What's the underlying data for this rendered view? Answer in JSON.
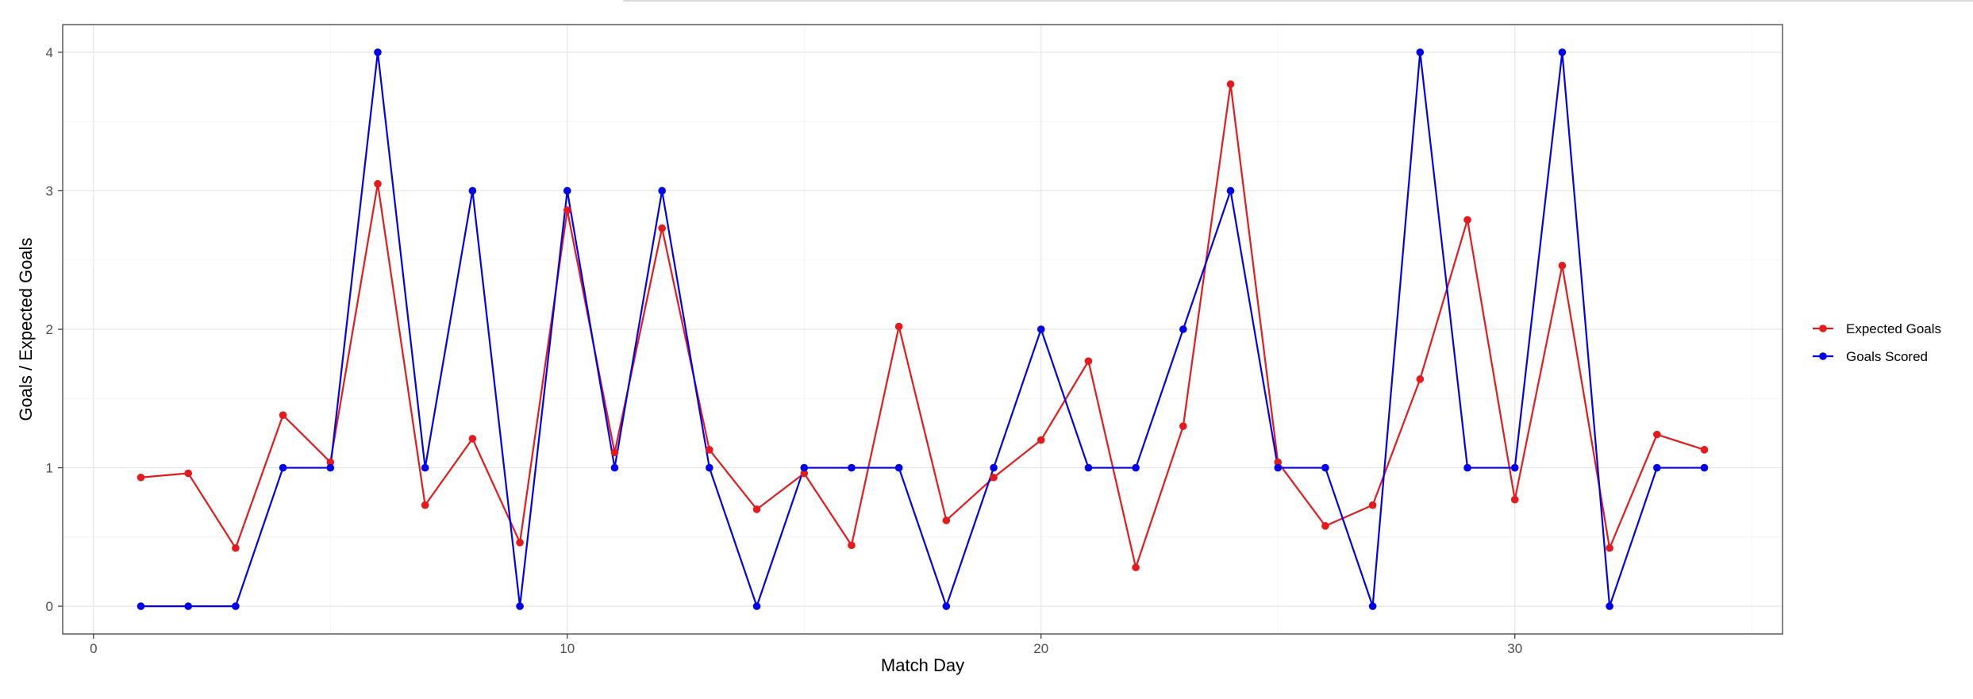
{
  "chart_data": {
    "type": "line",
    "title": "",
    "xlabel": "Match Day",
    "ylabel": "Goals / Expected Goals",
    "x": [
      1,
      2,
      3,
      4,
      5,
      6,
      7,
      8,
      9,
      10,
      11,
      12,
      13,
      14,
      15,
      16,
      17,
      18,
      19,
      20,
      21,
      22,
      23,
      24,
      25,
      26,
      27,
      28,
      29,
      30,
      31,
      32,
      33,
      34
    ],
    "xlim": [
      -0.65,
      35.65
    ],
    "ylim": [
      -0.2,
      4.2
    ],
    "x_ticks": [
      0,
      10,
      20,
      30
    ],
    "x_ticks_labels": [
      "0",
      "10",
      "20",
      "30"
    ],
    "y_ticks": [
      0,
      1,
      2,
      3,
      4
    ],
    "y_ticks_labels": [
      "0",
      "1",
      "2",
      "3",
      "4"
    ],
    "grid": true,
    "legend_position": "right",
    "series": [
      {
        "name": "Expected Goals",
        "color": "#E41A1C",
        "values": [
          0.93,
          0.96,
          0.42,
          1.38,
          1.04,
          3.05,
          0.73,
          1.21,
          0.46,
          2.86,
          1.11,
          2.73,
          1.13,
          0.7,
          0.96,
          0.44,
          2.02,
          0.62,
          0.93,
          1.2,
          1.77,
          0.28,
          1.3,
          3.77,
          1.04,
          0.58,
          0.73,
          1.64,
          2.79,
          0.77,
          2.46,
          0.42,
          1.24,
          1.13
        ]
      },
      {
        "name": "Goals Scored",
        "color": "#0000EE",
        "values": [
          0,
          0,
          0,
          1,
          1,
          4,
          1,
          3,
          0,
          3,
          1,
          3,
          1,
          0,
          1,
          1,
          1,
          0,
          1,
          2,
          1,
          1,
          2,
          3,
          1,
          1,
          0,
          4,
          1,
          1,
          4,
          0,
          1,
          1
        ]
      }
    ]
  }
}
